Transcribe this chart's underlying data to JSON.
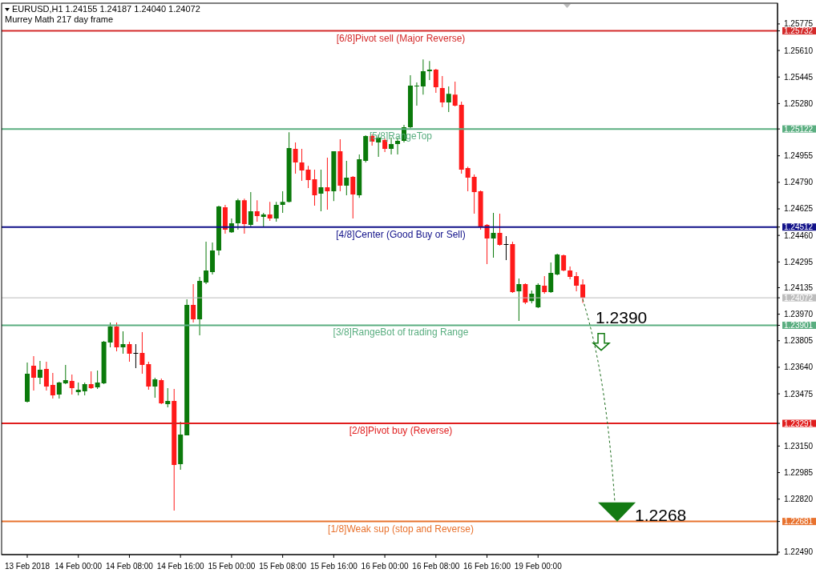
{
  "chart_data": {
    "type": "candlestick",
    "title": "EURUSD,H1 1.24155 1.24187 1.24040 1.24072",
    "subtitle": "Murrey Math 217 day frame",
    "categories": [
      "13 Feb 2018",
      null,
      null,
      null,
      null,
      null,
      null,
      null,
      "14 Feb 00:00",
      null,
      null,
      null,
      null,
      null,
      null,
      null,
      "14 Feb 08:00",
      null,
      null,
      null,
      null,
      null,
      null,
      null,
      "14 Feb 16:00",
      null,
      null,
      null,
      null,
      null,
      null,
      null,
      "15 Feb 00:00",
      null,
      null,
      null,
      null,
      null,
      null,
      null,
      "15 Feb 08:00",
      null,
      null,
      null,
      null,
      null,
      null,
      null,
      "15 Feb 16:00",
      null,
      null,
      null,
      null,
      null,
      null,
      null,
      "16 Feb 00:00",
      null,
      null,
      null,
      null,
      null,
      null,
      null,
      "16 Feb 08:00",
      null,
      null,
      null,
      null,
      null,
      null,
      null,
      "16 Feb 16:00",
      null,
      null,
      null,
      null,
      null,
      null,
      null,
      "19 Feb 00:00",
      null,
      null,
      null,
      null,
      null,
      null,
      null,
      null,
      null,
      null,
      null,
      null,
      null,
      null,
      null,
      null,
      null,
      null,
      null,
      null,
      null,
      null,
      null,
      null,
      null,
      null,
      null,
      null,
      null,
      null,
      null,
      null,
      null,
      null,
      null,
      null,
      null
    ],
    "ohlc": [
      [
        1.23426,
        1.23669,
        1.23421,
        1.236
      ],
      [
        1.2365,
        1.23709,
        1.23495,
        1.23575
      ],
      [
        1.23575,
        1.23679,
        1.23535,
        1.23625
      ],
      [
        1.2363,
        1.23674,
        1.23495,
        1.2352
      ],
      [
        1.2353,
        1.23605,
        1.23445,
        1.23465
      ],
      [
        1.2347,
        1.2355,
        1.23445,
        1.23545
      ],
      [
        1.2354,
        1.23654,
        1.23535,
        1.2356
      ],
      [
        1.23555,
        1.23595,
        1.2347,
        1.2351
      ],
      [
        1.23485,
        1.23545,
        1.23465,
        1.235
      ],
      [
        1.2349,
        1.23545,
        1.23465,
        1.23535
      ],
      [
        1.23535,
        1.23615,
        1.23505,
        1.2351
      ],
      [
        1.23515,
        1.2362,
        1.23505,
        1.23545
      ],
      [
        1.2354,
        1.23804,
        1.23535,
        1.23799
      ],
      [
        1.23794,
        1.23918,
        1.23764,
        1.23893
      ],
      [
        1.23893,
        1.23918,
        1.23739,
        1.23764
      ],
      [
        1.23764,
        1.23863,
        1.23724,
        1.23784
      ],
      [
        1.23784,
        1.23799,
        1.23674,
        1.23724
      ],
      [
        1.23729,
        1.23784,
        1.23635,
        1.23729
      ],
      [
        1.23729,
        1.23858,
        1.236,
        1.23654
      ],
      [
        1.23659,
        1.23674,
        1.235,
        1.2352
      ],
      [
        1.2352,
        1.23575,
        1.2345,
        1.23565
      ],
      [
        1.2356,
        1.2357,
        1.23411,
        1.23416
      ],
      [
        1.23411,
        1.2351,
        1.23391,
        1.23431
      ],
      [
        1.23431,
        1.23505,
        1.22749,
        1.23032
      ],
      [
        1.23037,
        1.23301,
        1.23003,
        1.23222
      ],
      [
        1.23217,
        1.24062,
        1.23217,
        1.24028
      ],
      [
        1.24028,
        1.24157,
        1.23918,
        1.23938
      ],
      [
        1.23938,
        1.24202,
        1.23839,
        1.24177
      ],
      [
        1.24167,
        1.24421,
        1.24157,
        1.24242
      ],
      [
        1.24232,
        1.24416,
        1.24217,
        1.24366
      ],
      [
        1.24366,
        1.24645,
        1.24336,
        1.2464
      ],
      [
        1.24635,
        1.2465,
        1.24471,
        1.24495
      ],
      [
        1.2448,
        1.24565,
        1.24476,
        1.24535
      ],
      [
        1.24535,
        1.24689,
        1.24495,
        1.24679
      ],
      [
        1.24679,
        1.24689,
        1.24471,
        1.2453
      ],
      [
        1.24525,
        1.24729,
        1.24515,
        1.2461
      ],
      [
        1.2461,
        1.24679,
        1.24545,
        1.2458
      ],
      [
        1.24575,
        1.246,
        1.24515,
        1.2459
      ],
      [
        1.2459,
        1.24669,
        1.2455,
        1.24565
      ],
      [
        1.24565,
        1.24669,
        1.24545,
        1.2465
      ],
      [
        1.2465,
        1.24734,
        1.246,
        1.24669
      ],
      [
        1.24669,
        1.25102,
        1.24665,
        1.25003
      ],
      [
        1.24998,
        1.25038,
        1.24844,
        1.24913
      ],
      [
        1.24913,
        1.24998,
        1.24799,
        1.24864
      ],
      [
        1.24869,
        1.24893,
        1.24754,
        1.24804
      ],
      [
        1.24809,
        1.24869,
        1.24645,
        1.24709
      ],
      [
        1.24719,
        1.24869,
        1.2461,
        1.24759
      ],
      [
        1.24759,
        1.24943,
        1.2462,
        1.24734
      ],
      [
        1.24734,
        1.24983,
        1.24674,
        1.24983
      ],
      [
        1.24983,
        1.25058,
        1.24734,
        1.24769
      ],
      [
        1.24769,
        1.24923,
        1.24709,
        1.24819
      ],
      [
        1.24824,
        1.24829,
        1.24565,
        1.24714
      ],
      [
        1.24709,
        1.24963,
        1.24694,
        1.24933
      ],
      [
        1.24923,
        1.25083,
        1.24913,
        1.25078
      ],
      [
        1.25078,
        1.25088,
        1.25018,
        1.25043
      ],
      [
        1.25038,
        1.25088,
        1.24948,
        1.25068
      ],
      [
        1.25053,
        1.25063,
        1.24978,
        1.24998
      ],
      [
        1.24998,
        1.25068,
        1.24963,
        1.25028
      ],
      [
        1.25028,
        1.25068,
        1.24963,
        1.25048
      ],
      [
        1.25048,
        1.25147,
        1.25038,
        1.25132
      ],
      [
        1.25132,
        1.25456,
        1.25127,
        1.25391
      ],
      [
        1.25386,
        1.25411,
        1.25267,
        1.25391
      ],
      [
        1.25386,
        1.25555,
        1.25336,
        1.25481
      ],
      [
        1.25481,
        1.25545,
        1.25426,
        1.25491
      ],
      [
        1.25491,
        1.25496,
        1.25346,
        1.25381
      ],
      [
        1.25376,
        1.25451,
        1.25257,
        1.25287
      ],
      [
        1.25287,
        1.25386,
        1.25227,
        1.25341
      ],
      [
        1.25336,
        1.25416,
        1.25262,
        1.25267
      ],
      [
        1.25272,
        1.25292,
        1.24844,
        1.24869
      ],
      [
        1.24879,
        1.24888,
        1.24734,
        1.24819
      ],
      [
        1.24824,
        1.24839,
        1.24595,
        1.24729
      ],
      [
        1.24734,
        1.24739,
        1.24495,
        1.2451
      ],
      [
        1.24525,
        1.2453,
        1.24281,
        1.24441
      ],
      [
        1.24441,
        1.246,
        1.24321,
        1.24476
      ],
      [
        1.24476,
        1.24595,
        1.24396,
        1.24401
      ],
      [
        1.24406,
        1.24456,
        1.24306,
        1.24406
      ],
      [
        1.24406,
        1.24421,
        1.24102,
        1.24107
      ],
      [
        1.24112,
        1.24192,
        1.23928,
        1.24157
      ],
      [
        1.24157,
        1.24162,
        1.24033,
        1.24043
      ],
      [
        1.24052,
        1.24117,
        1.24038,
        1.24097
      ],
      [
        1.24013,
        1.24162,
        1.24008,
        1.24152
      ],
      [
        1.24147,
        1.24207,
        1.24097,
        1.24107
      ],
      [
        1.24107,
        1.24291,
        1.24102,
        1.24227
      ],
      [
        1.24217,
        1.24346,
        1.24212,
        1.24341
      ],
      [
        1.24336,
        1.24341,
        1.24237,
        1.24242
      ],
      [
        1.24242,
        1.24267,
        1.24187,
        1.24202
      ],
      [
        1.24207,
        1.24232,
        1.24112,
        1.24147
      ],
      [
        1.24155,
        1.24187,
        1.2404,
        1.24072
      ],
      null,
      null,
      null,
      null,
      null,
      null,
      null,
      null,
      null,
      null,
      null,
      null,
      null,
      null,
      null,
      null,
      null,
      null,
      null,
      null,
      null,
      null,
      null,
      null,
      null,
      null,
      null,
      null,
      null,
      null
    ],
    "colors": [
      "#0b7a0b",
      "#ff1a1a",
      "#0b7a0b",
      "#ff1a1a",
      "#ff1a1a",
      "#0b7a0b",
      "#0b7a0b",
      "#ff1a1a",
      "#0b7a0b",
      "#0b7a0b",
      "#ff1a1a",
      "#0b7a0b",
      "#0b7a0b",
      "#0b7a0b",
      "#ff1a1a",
      "#0b7a0b",
      "#ff1a1a",
      "#000000",
      "#ff1a1a",
      "#ff1a1a",
      "#0b7a0b",
      "#ff1a1a",
      "#0b7a0b",
      "#ff1a1a",
      "#0b7a0b",
      "#0b7a0b",
      "#ff1a1a",
      "#0b7a0b",
      "#0b7a0b",
      "#0b7a0b",
      "#0b7a0b",
      "#ff1a1a",
      "#0b7a0b",
      "#0b7a0b",
      "#ff1a1a",
      "#0b7a0b",
      "#ff1a1a",
      "#0b7a0b",
      "#ff1a1a",
      "#0b7a0b",
      "#0b7a0b",
      "#0b7a0b",
      "#ff1a1a",
      "#ff1a1a",
      "#ff1a1a",
      "#ff1a1a",
      "#0b7a0b",
      "#ff1a1a",
      "#0b7a0b",
      "#ff1a1a",
      "#0b7a0b",
      "#ff1a1a",
      "#0b7a0b",
      "#0b7a0b",
      "#ff1a1a",
      "#0b7a0b",
      "#ff1a1a",
      "#0b7a0b",
      "#0b7a0b",
      "#0b7a0b",
      "#0b7a0b",
      "#0b7a0b",
      "#0b7a0b",
      "#0b7a0b",
      "#ff1a1a",
      "#ff1a1a",
      "#0b7a0b",
      "#ff1a1a",
      "#ff1a1a",
      "#ff1a1a",
      "#ff1a1a",
      "#ff1a1a",
      "#ff1a1a",
      "#0b7a0b",
      "#ff1a1a",
      "#000000",
      "#ff1a1a",
      "#0b7a0b",
      "#ff1a1a",
      "#0b7a0b",
      "#0b7a0b",
      "#ff1a1a",
      "#0b7a0b",
      "#0b7a0b",
      "#ff1a1a",
      "#ff1a1a",
      "#ff1a1a",
      "#ff1a1a",
      null,
      null,
      null,
      null,
      null,
      null,
      null,
      null,
      null,
      null,
      null,
      null,
      null,
      null,
      null,
      null,
      null,
      null,
      null,
      null,
      null,
      null,
      null,
      null,
      null,
      null,
      null,
      null,
      null,
      null
    ],
    "ylim": [
      1.22475,
      1.25904
    ],
    "yticks": [
      {
        "value": 1.2249,
        "label": "1.22490"
      },
      {
        "value": 1.22681,
        "label": "1.22681"
      },
      {
        "value": 1.2282,
        "label": "1.22820"
      },
      {
        "value": 1.22985,
        "label": "1.22985"
      },
      {
        "value": 1.2315,
        "label": "1.23150"
      },
      {
        "value": 1.23291,
        "label": "1.23291"
      },
      {
        "value": 1.23475,
        "label": "1.23475"
      },
      {
        "value": 1.2364,
        "label": "1.23640"
      },
      {
        "value": 1.23805,
        "label": "1.23805"
      },
      {
        "value": 1.23901,
        "label": "1.23901"
      },
      {
        "value": 1.2397,
        "label": "1.23970"
      },
      {
        "value": 1.24072,
        "label": "1.24072"
      },
      {
        "value": 1.24135,
        "label": "1.24135"
      },
      {
        "value": 1.24295,
        "label": "1.24295"
      },
      {
        "value": 1.2446,
        "label": "1.24460"
      },
      {
        "value": 1.24512,
        "label": "1.24512"
      },
      {
        "value": 1.24625,
        "label": "1.24625"
      },
      {
        "value": 1.2479,
        "label": "1.24790"
      },
      {
        "value": 1.24955,
        "label": "1.24955"
      },
      {
        "value": 1.25122,
        "label": "1.25122"
      },
      {
        "value": 1.2528,
        "label": "1.25280"
      },
      {
        "value": 1.25445,
        "label": "1.25445"
      },
      {
        "value": 1.2561,
        "label": "1.25610"
      },
      {
        "value": 1.25732,
        "label": "1.25732"
      },
      {
        "value": 1.25775,
        "label": "1.25775"
      }
    ],
    "ref_lines": [
      {
        "axis": "y",
        "value": 1.25732,
        "label": "[6/8]Pivot sell (Major Reverse)",
        "color": "#d42a2a"
      },
      {
        "axis": "y",
        "value": 1.25122,
        "label": "[5/8]RangeTop",
        "color": "#5aae80"
      },
      {
        "axis": "y",
        "value": 1.24512,
        "label": "[4/8]Center (Good Buy or Sell)",
        "color": "#12128a"
      },
      {
        "axis": "y",
        "value": 1.24072,
        "label": null,
        "color": "#bdbdbd"
      },
      {
        "axis": "y",
        "value": 1.23901,
        "label": "[3/8]RangeBot of trading Range",
        "color": "#5aae80"
      },
      {
        "axis": "y",
        "value": 1.23291,
        "label": "[2/8]Pivot buy (Reverse)",
        "color": "#e01e1e"
      },
      {
        "axis": "y",
        "value": 1.22681,
        "label": "[1/8]Weak sup (stop and Reverse)",
        "color": "#e8722e"
      }
    ],
    "annotations": [
      {
        "text": "1.2390",
        "y": 1.239
      },
      {
        "text": "1.2268",
        "y": 1.2268
      }
    ]
  }
}
